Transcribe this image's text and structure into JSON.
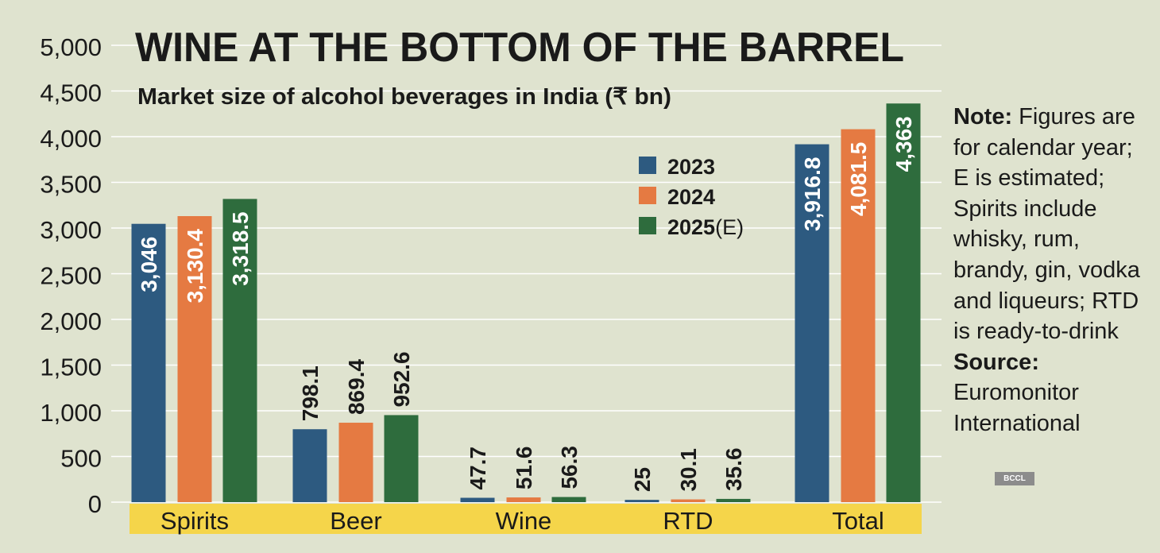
{
  "chart_data": {
    "type": "bar",
    "title": "WINE AT THE BOTTOM OF THE BARREL",
    "subtitle": "Market size of alcohol beverages in India (₹ bn)",
    "categories": [
      "Spirits",
      "Beer",
      "Wine",
      "RTD",
      "Total"
    ],
    "series": [
      {
        "name": "2023",
        "values": [
          3046,
          798.1,
          47.7,
          25,
          3916.8
        ],
        "labels": [
          "3,046",
          "798.1",
          "47.7",
          "25",
          "3,916.8"
        ],
        "color": "#2d5a80"
      },
      {
        "name": "2024",
        "values": [
          3130.4,
          869.4,
          51.6,
          30.1,
          4081.5
        ],
        "labels": [
          "3,130.4",
          "869.4",
          "51.6",
          "30.1",
          "4,081.5"
        ],
        "color": "#e57a42"
      },
      {
        "name": "2025(E)",
        "values": [
          3318.5,
          952.6,
          56.3,
          35.6,
          4363
        ],
        "labels": [
          "3,318.5",
          "952.6",
          "56.3",
          "35.6",
          "4,363"
        ],
        "color": "#2e6c3d"
      }
    ],
    "legend_year_labels": [
      "2023",
      "2024",
      "2025"
    ],
    "legend_suffix": "(E)",
    "yticks": [
      "0",
      "500",
      "1,000",
      "1,500",
      "2,000",
      "2,500",
      "3,000",
      "3,500",
      "4,000",
      "4,500",
      "5,000"
    ],
    "ylim": [
      0,
      5000
    ],
    "grid": true,
    "legend_position": "top-center"
  },
  "note": {
    "label": "Note:",
    "text": " Figures are for calendar year; E is estimated; Spirits include whisky, rum, brandy, gin, vodka and liqueurs; RTD is ready-to-drink",
    "source_label": "Source:",
    "source_text": "Euromonitor International"
  },
  "badge": "BCCL",
  "colors": {
    "background": "#dfe3cf",
    "category_band": "#f5d54a"
  }
}
